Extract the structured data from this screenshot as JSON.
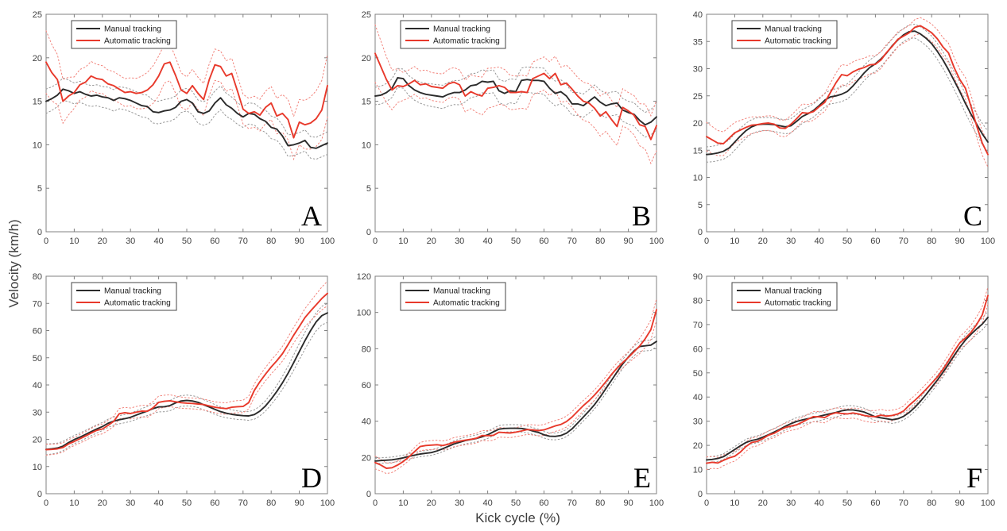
{
  "figure": {
    "ylabel": "Velocity (km/h)",
    "xlabel": "Kick cycle (%)",
    "legend": [
      "Manual tracking",
      "Automatic tracking"
    ],
    "colors": {
      "manual": "#2b2b2b",
      "automatic": "#e8392b",
      "manual_band": "#969696",
      "automatic_band": "#f2837b",
      "axis": "#808080",
      "tick_text": "#404040"
    }
  },
  "chart_data": [
    {
      "label": "A",
      "type": "line",
      "xlim": [
        0,
        100
      ],
      "ylim": [
        0,
        25
      ],
      "xtick_step": 10,
      "ytick_step": 5,
      "x_step": 2,
      "series": [
        {
          "name": "Manual tracking",
          "color_key": "manual",
          "values": [
            15.0,
            15.3,
            15.7,
            16.4,
            16.2,
            15.9,
            16.1,
            15.8,
            15.6,
            15.7,
            15.5,
            15.4,
            15.1,
            15.4,
            15.3,
            15.1,
            14.8,
            14.5,
            14.4,
            13.8,
            13.7,
            13.9,
            14.0,
            14.3,
            15.0,
            15.2,
            14.8,
            13.8,
            13.6,
            13.9,
            14.8,
            15.4,
            14.6,
            14.2,
            13.6,
            13.2,
            13.6,
            13.5,
            13.0,
            12.7,
            12.0,
            11.8,
            11.0,
            9.9,
            10.0,
            10.2,
            10.5,
            9.7,
            9.6,
            9.9,
            10.2
          ],
          "sd": [
            1.4,
            1.2,
            1.2,
            1.3,
            1.3,
            1.3,
            1.4,
            1.2,
            1.3,
            1.2,
            1.3
          ]
        },
        {
          "name": "Automatic tracking",
          "color_key": "automatic",
          "values": [
            19.5,
            18.3,
            17.5,
            15.0,
            15.6,
            16.0,
            16.9,
            17.2,
            17.9,
            17.6,
            17.5,
            17.0,
            16.8,
            16.4,
            16.0,
            16.1,
            15.9,
            16.0,
            16.3,
            16.9,
            17.9,
            19.3,
            19.5,
            18.0,
            16.3,
            15.9,
            16.8,
            15.9,
            15.2,
            17.5,
            19.2,
            19.0,
            17.9,
            18.2,
            16.2,
            14.1,
            13.6,
            13.8,
            13.4,
            14.3,
            14.8,
            13.3,
            13.6,
            12.9,
            10.8,
            12.6,
            12.3,
            12.5,
            13.0,
            14.0,
            16.8
          ],
          "sd": [
            3.6,
            1.8,
            1.6,
            1.6,
            2.3,
            1.9,
            1.8,
            1.7,
            1.9,
            2.6,
            3.6
          ]
        }
      ]
    },
    {
      "label": "B",
      "type": "line",
      "xlim": [
        0,
        100
      ],
      "ylim": [
        0,
        25
      ],
      "xtick_step": 10,
      "ytick_step": 5,
      "x_step": 2,
      "series": [
        {
          "name": "Manual tracking",
          "color_key": "manual",
          "values": [
            15.6,
            15.7,
            16.0,
            16.5,
            17.7,
            17.6,
            16.8,
            16.3,
            16.0,
            15.8,
            15.7,
            15.6,
            15.5,
            15.8,
            16.0,
            16.0,
            16.3,
            16.8,
            16.9,
            17.3,
            17.2,
            17.3,
            16.2,
            15.9,
            16.2,
            16.1,
            17.4,
            17.5,
            17.4,
            17.4,
            17.3,
            16.5,
            15.9,
            16.1,
            15.6,
            14.7,
            14.7,
            14.5,
            15.0,
            15.5,
            14.9,
            14.5,
            14.7,
            14.8,
            14.0,
            13.7,
            13.5,
            12.8,
            12.3,
            12.6,
            13.2
          ],
          "sd": [
            1.0,
            1.1,
            1.3,
            1.4,
            1.3,
            1.4,
            1.5,
            1.3,
            1.4,
            1.3,
            1.5
          ]
        },
        {
          "name": "Automatic tracking",
          "color_key": "automatic",
          "values": [
            20.5,
            19.0,
            17.5,
            16.3,
            16.8,
            16.7,
            17.0,
            17.4,
            16.9,
            17.0,
            16.7,
            16.6,
            16.5,
            17.0,
            17.2,
            16.9,
            15.6,
            16.1,
            15.8,
            15.6,
            16.5,
            16.6,
            16.8,
            16.6,
            16.0,
            16.0,
            16.1,
            16.0,
            17.6,
            17.9,
            18.2,
            17.6,
            18.2,
            16.9,
            17.1,
            16.4,
            15.6,
            15.0,
            14.8,
            14.2,
            13.3,
            13.8,
            12.9,
            12.1,
            14.3,
            13.9,
            13.4,
            12.3,
            12.1,
            10.6,
            12.2
          ],
          "sd": [
            3.3,
            1.6,
            1.6,
            1.7,
            2.3,
            1.9,
            1.9,
            2.1,
            2.3,
            2.1,
            2.9
          ]
        }
      ]
    },
    {
      "label": "C",
      "type": "line",
      "xlim": [
        0,
        100
      ],
      "ylim": [
        0,
        40
      ],
      "xtick_step": 10,
      "ytick_step": 5,
      "x_step": 2,
      "series": [
        {
          "name": "Manual tracking",
          "color_key": "manual",
          "values": [
            14.2,
            14.3,
            14.5,
            14.8,
            15.4,
            16.5,
            17.6,
            18.6,
            19.3,
            19.7,
            19.8,
            19.8,
            19.7,
            19.5,
            19.3,
            19.5,
            20.3,
            21.2,
            21.7,
            22.3,
            23.2,
            24.2,
            24.8,
            25.0,
            25.3,
            25.8,
            26.8,
            28.0,
            29.2,
            30.2,
            30.9,
            31.8,
            32.9,
            34.2,
            35.3,
            36.2,
            36.8,
            36.9,
            36.4,
            35.6,
            34.6,
            33.2,
            31.6,
            29.8,
            27.8,
            25.8,
            23.6,
            21.6,
            19.8,
            18.0,
            16.5
          ],
          "sd": [
            1.4,
            1.5,
            1.2,
            1.3,
            1.2,
            1.4,
            1.4,
            1.2,
            1.4,
            1.7,
            2.0
          ]
        },
        {
          "name": "Automatic tracking",
          "color_key": "automatic",
          "values": [
            17.5,
            16.9,
            16.3,
            16.2,
            17.2,
            18.2,
            18.7,
            19.2,
            19.6,
            19.7,
            19.9,
            20.0,
            19.8,
            19.1,
            19.0,
            19.8,
            20.8,
            21.9,
            21.8,
            22.1,
            23.0,
            23.8,
            25.6,
            27.4,
            28.9,
            28.7,
            29.4,
            29.9,
            30.2,
            30.7,
            30.8,
            31.6,
            33.0,
            34.1,
            35.4,
            36.0,
            36.6,
            37.6,
            37.9,
            37.3,
            36.6,
            35.5,
            34.0,
            32.9,
            30.2,
            28.0,
            26.4,
            23.0,
            19.5,
            16.3,
            14.2
          ],
          "sd": [
            2.6,
            1.9,
            1.3,
            1.6,
            1.6,
            1.9,
            1.6,
            1.3,
            1.6,
            1.9,
            2.3
          ]
        }
      ]
    },
    {
      "label": "D",
      "type": "line",
      "xlim": [
        0,
        100
      ],
      "ylim": [
        0,
        80
      ],
      "xtick_step": 10,
      "ytick_step": 10,
      "x_step": 2,
      "series": [
        {
          "name": "Manual tracking",
          "color_key": "manual",
          "values": [
            16.3,
            16.5,
            16.8,
            17.5,
            18.8,
            19.9,
            20.8,
            21.8,
            22.8,
            23.8,
            24.7,
            25.9,
            26.7,
            27.2,
            27.6,
            28.1,
            28.9,
            29.7,
            30.4,
            31.3,
            31.9,
            32.0,
            32.4,
            33.4,
            34.1,
            34.3,
            34.1,
            33.6,
            32.7,
            31.9,
            31.0,
            30.2,
            29.6,
            29.2,
            28.9,
            28.7,
            28.6,
            29.1,
            30.4,
            32.3,
            34.8,
            37.6,
            40.8,
            44.3,
            48.2,
            52.3,
            56.3,
            60.0,
            63.2,
            65.5,
            66.5
          ],
          "sd": [
            2.0,
            1.5,
            1.5,
            1.5,
            1.8,
            2.0,
            1.8,
            1.5,
            2.0,
            3.0,
            3.5
          ]
        },
        {
          "name": "Automatic tracking",
          "color_key": "automatic",
          "values": [
            16.2,
            16.3,
            16.5,
            17.0,
            18.3,
            19.2,
            20.2,
            21.2,
            22.3,
            23.3,
            23.8,
            25.1,
            26.6,
            29.4,
            29.8,
            29.5,
            30.0,
            30.4,
            30.3,
            31.6,
            33.6,
            34.0,
            34.2,
            33.8,
            33.5,
            33.3,
            33.2,
            33.0,
            32.8,
            32.3,
            31.8,
            31.5,
            31.3,
            31.8,
            32.0,
            32.1,
            33.5,
            38.0,
            41.2,
            44.0,
            46.6,
            48.9,
            51.5,
            54.8,
            58.3,
            61.5,
            64.8,
            67.2,
            69.5,
            71.8,
            73.7
          ],
          "sd": [
            2.0,
            1.5,
            1.8,
            2.0,
            2.3,
            2.0,
            2.0,
            2.3,
            2.5,
            3.0,
            4.5
          ]
        }
      ]
    },
    {
      "label": "E",
      "type": "line",
      "xlim": [
        0,
        100
      ],
      "ylim": [
        0,
        120
      ],
      "xtick_step": 10,
      "ytick_step": 20,
      "x_step": 2,
      "series": [
        {
          "name": "Manual tracking",
          "color_key": "manual",
          "values": [
            18.0,
            18.3,
            18.5,
            18.7,
            19.2,
            19.8,
            20.6,
            21.3,
            21.9,
            22.3,
            22.7,
            23.6,
            24.8,
            26.1,
            27.4,
            28.4,
            29.3,
            29.9,
            30.5,
            31.4,
            32.5,
            34.1,
            35.6,
            36.0,
            36.1,
            36.1,
            36.0,
            35.5,
            34.6,
            33.8,
            32.5,
            31.7,
            31.6,
            32.1,
            33.4,
            35.8,
            39.0,
            42.3,
            45.6,
            49.2,
            53.4,
            58.0,
            62.6,
            67.2,
            71.6,
            75.4,
            78.8,
            81.2,
            81.6,
            82.0,
            84.0
          ],
          "sd": [
            1.5,
            1.5,
            1.5,
            1.8,
            2.0,
            2.0,
            1.8,
            2.0,
            2.5,
            2.5,
            3.0
          ]
        },
        {
          "name": "Automatic tracking",
          "color_key": "automatic",
          "values": [
            17.2,
            15.8,
            14.0,
            14.3,
            15.8,
            17.8,
            20.3,
            23.2,
            26.0,
            26.6,
            26.8,
            27.0,
            26.6,
            27.3,
            28.4,
            29.0,
            29.5,
            30.0,
            30.6,
            32.1,
            32.0,
            32.2,
            33.9,
            33.7,
            33.5,
            34.0,
            34.6,
            35.4,
            35.2,
            34.8,
            35.2,
            36.3,
            37.4,
            38.2,
            39.8,
            42.3,
            45.5,
            48.6,
            51.3,
            54.5,
            58.0,
            61.8,
            65.8,
            69.3,
            72.4,
            75.2,
            78.3,
            81.5,
            85.5,
            90.5,
            101.5
          ],
          "sd": [
            3.5,
            2.0,
            2.5,
            2.5,
            2.8,
            2.5,
            3.0,
            3.0,
            2.8,
            3.0,
            6.0
          ]
        }
      ]
    },
    {
      "label": "F",
      "type": "line",
      "xlim": [
        0,
        100
      ],
      "ylim": [
        0,
        90
      ],
      "xtick_step": 10,
      "ytick_step": 10,
      "x_step": 2,
      "series": [
        {
          "name": "Manual tracking",
          "color_key": "manual",
          "values": [
            14.0,
            14.2,
            14.6,
            15.3,
            16.8,
            18.3,
            19.8,
            21.2,
            22.0,
            22.5,
            23.4,
            24.4,
            25.5,
            26.6,
            27.9,
            29.0,
            29.9,
            30.5,
            31.0,
            31.5,
            32.0,
            32.6,
            33.1,
            33.6,
            34.3,
            34.7,
            34.7,
            34.3,
            33.8,
            32.8,
            31.8,
            31.4,
            31.0,
            30.6,
            31.0,
            32.0,
            33.6,
            35.7,
            38.2,
            41.0,
            44.0,
            47.0,
            50.2,
            53.6,
            57.2,
            60.6,
            63.6,
            66.0,
            68.2,
            70.2,
            73.0
          ],
          "sd": [
            1.2,
            1.2,
            1.5,
            1.5,
            1.8,
            1.8,
            1.5,
            1.5,
            1.8,
            2.0,
            2.5
          ]
        },
        {
          "name": "Automatic tracking",
          "color_key": "automatic",
          "values": [
            12.6,
            13.0,
            12.7,
            13.8,
            14.8,
            15.5,
            17.2,
            19.5,
            21.2,
            21.6,
            22.8,
            24.2,
            25.0,
            26.3,
            27.4,
            28.0,
            28.5,
            29.6,
            30.8,
            31.9,
            31.8,
            31.5,
            32.8,
            33.5,
            33.2,
            33.0,
            33.4,
            33.0,
            32.4,
            32.0,
            31.9,
            32.5,
            32.1,
            32.4,
            33.0,
            34.2,
            36.6,
            38.6,
            40.8,
            43.2,
            45.7,
            48.3,
            51.4,
            55.0,
            58.9,
            62.4,
            64.4,
            66.8,
            70.0,
            74.0,
            82.0
          ],
          "sd": [
            2.6,
            2.0,
            1.8,
            1.8,
            2.2,
            2.0,
            2.5,
            2.0,
            2.2,
            2.6,
            3.6
          ]
        }
      ]
    }
  ]
}
